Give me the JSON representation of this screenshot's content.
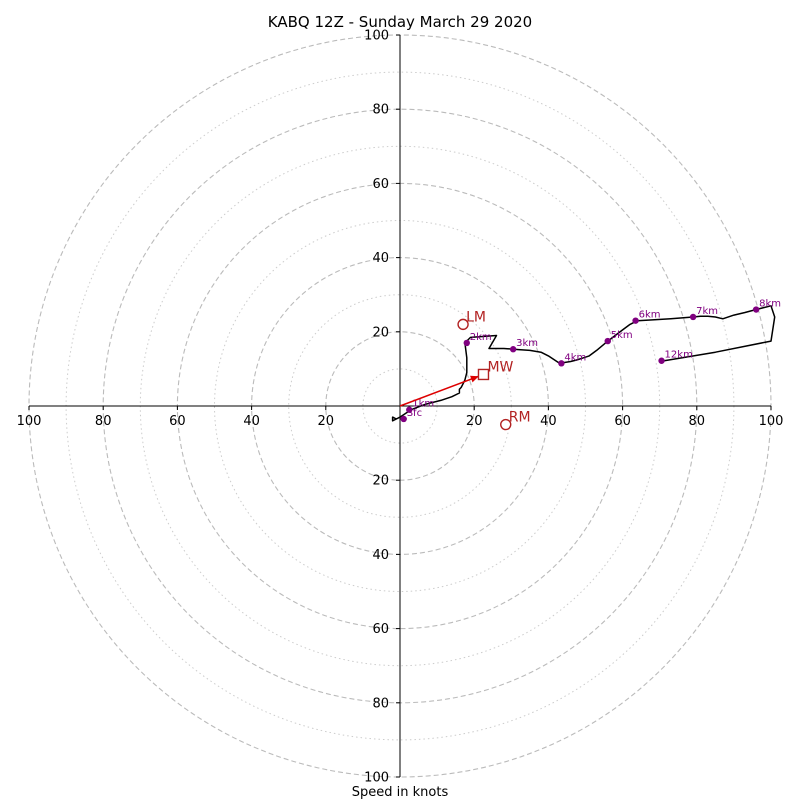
{
  "chart_data": {
    "type": "hodograph",
    "title": "KABQ 12Z - Sunday March 29 2020",
    "xlabel": "Speed in knots",
    "xlim": [
      -100,
      100
    ],
    "ylim": [
      -100,
      100
    ],
    "x_ticks": [
      {
        "value": -100,
        "label": "100"
      },
      {
        "value": -80,
        "label": "80"
      },
      {
        "value": -60,
        "label": "60"
      },
      {
        "value": -40,
        "label": "40"
      },
      {
        "value": -20,
        "label": "20"
      },
      {
        "value": 20,
        "label": "20"
      },
      {
        "value": 40,
        "label": "40"
      },
      {
        "value": 60,
        "label": "60"
      },
      {
        "value": 80,
        "label": "80"
      },
      {
        "value": 100,
        "label": "100"
      }
    ],
    "y_ticks": [
      {
        "value": 100,
        "label": "100"
      },
      {
        "value": 80,
        "label": "80"
      },
      {
        "value": 60,
        "label": "60"
      },
      {
        "value": 40,
        "label": "40"
      },
      {
        "value": 20,
        "label": "20"
      },
      {
        "value": -20,
        "label": "20"
      },
      {
        "value": -40,
        "label": "40"
      },
      {
        "value": -60,
        "label": "60"
      },
      {
        "value": -80,
        "label": "80"
      },
      {
        "value": -100,
        "label": "100"
      }
    ],
    "rings_dashed": [
      20,
      40,
      60,
      80,
      100
    ],
    "rings_dotted": [
      10,
      30,
      50,
      70,
      90
    ],
    "grid": true,
    "colors": {
      "trace": "#000000",
      "height_marker": "#800080",
      "vector": "#dd0000",
      "motion": "#b22222",
      "ring": "#bbbbbb"
    },
    "trace": [
      [
        1,
        -2.5
      ],
      [
        -1,
        -3.5
      ],
      [
        -2,
        -4
      ],
      [
        -2,
        -3
      ],
      [
        -1,
        -3.5
      ],
      [
        0,
        -3
      ],
      [
        3,
        -1
      ],
      [
        7,
        0.5
      ],
      [
        11,
        1.5
      ],
      [
        14,
        2.5
      ],
      [
        16,
        3.5
      ],
      [
        16,
        4.5
      ],
      [
        16.5,
        5
      ],
      [
        17,
        6
      ],
      [
        17.5,
        7
      ],
      [
        18,
        9
      ],
      [
        18,
        11
      ],
      [
        18,
        13
      ],
      [
        17.5,
        17
      ],
      [
        19,
        18.5
      ],
      [
        26,
        19
      ],
      [
        24,
        15.5
      ],
      [
        28,
        15.5
      ],
      [
        32,
        15.2
      ],
      [
        35,
        15
      ],
      [
        38,
        14.5
      ],
      [
        40,
        13.5
      ],
      [
        43,
        11.5
      ],
      [
        46,
        12
      ],
      [
        48,
        12.5
      ],
      [
        51,
        13.5
      ],
      [
        53,
        15
      ],
      [
        56,
        17.5
      ],
      [
        58,
        19
      ],
      [
        60,
        20.5
      ],
      [
        62,
        22
      ],
      [
        64,
        23
      ],
      [
        68,
        23.2
      ],
      [
        73,
        23.5
      ],
      [
        79,
        24
      ],
      [
        81,
        24.2
      ],
      [
        83,
        24.2
      ],
      [
        85,
        24
      ],
      [
        87,
        23.5
      ],
      [
        90,
        24.5
      ],
      [
        93,
        25.2
      ],
      [
        96,
        26
      ],
      [
        100,
        27
      ],
      [
        101,
        24
      ],
      [
        100,
        17.5
      ],
      [
        85,
        14.5
      ],
      [
        70,
        12
      ]
    ],
    "height_markers": [
      {
        "label": "Sfc",
        "u": 1,
        "v": -3.5
      },
      {
        "label": "1km",
        "u": 2.5,
        "v": -1
      },
      {
        "label": "2km",
        "u": 18,
        "v": 17
      },
      {
        "label": "3km",
        "u": 30.5,
        "v": 15.3
      },
      {
        "label": "4km",
        "u": 43.5,
        "v": 11.5
      },
      {
        "label": "5km",
        "u": 56,
        "v": 17.5
      },
      {
        "label": "6km",
        "u": 63.5,
        "v": 23
      },
      {
        "label": "7km",
        "u": 79,
        "v": 24
      },
      {
        "label": "8km",
        "u": 96,
        "v": 26
      },
      {
        "label": "12km",
        "u": 70.5,
        "v": 12.2
      }
    ],
    "mean_wind": {
      "label": "MW",
      "u": 22.5,
      "v": 8.5
    },
    "left_mover": {
      "label": "LM",
      "u": 17,
      "v": 22
    },
    "right_mover": {
      "label": "RM",
      "u": 28.5,
      "v": -5
    }
  }
}
